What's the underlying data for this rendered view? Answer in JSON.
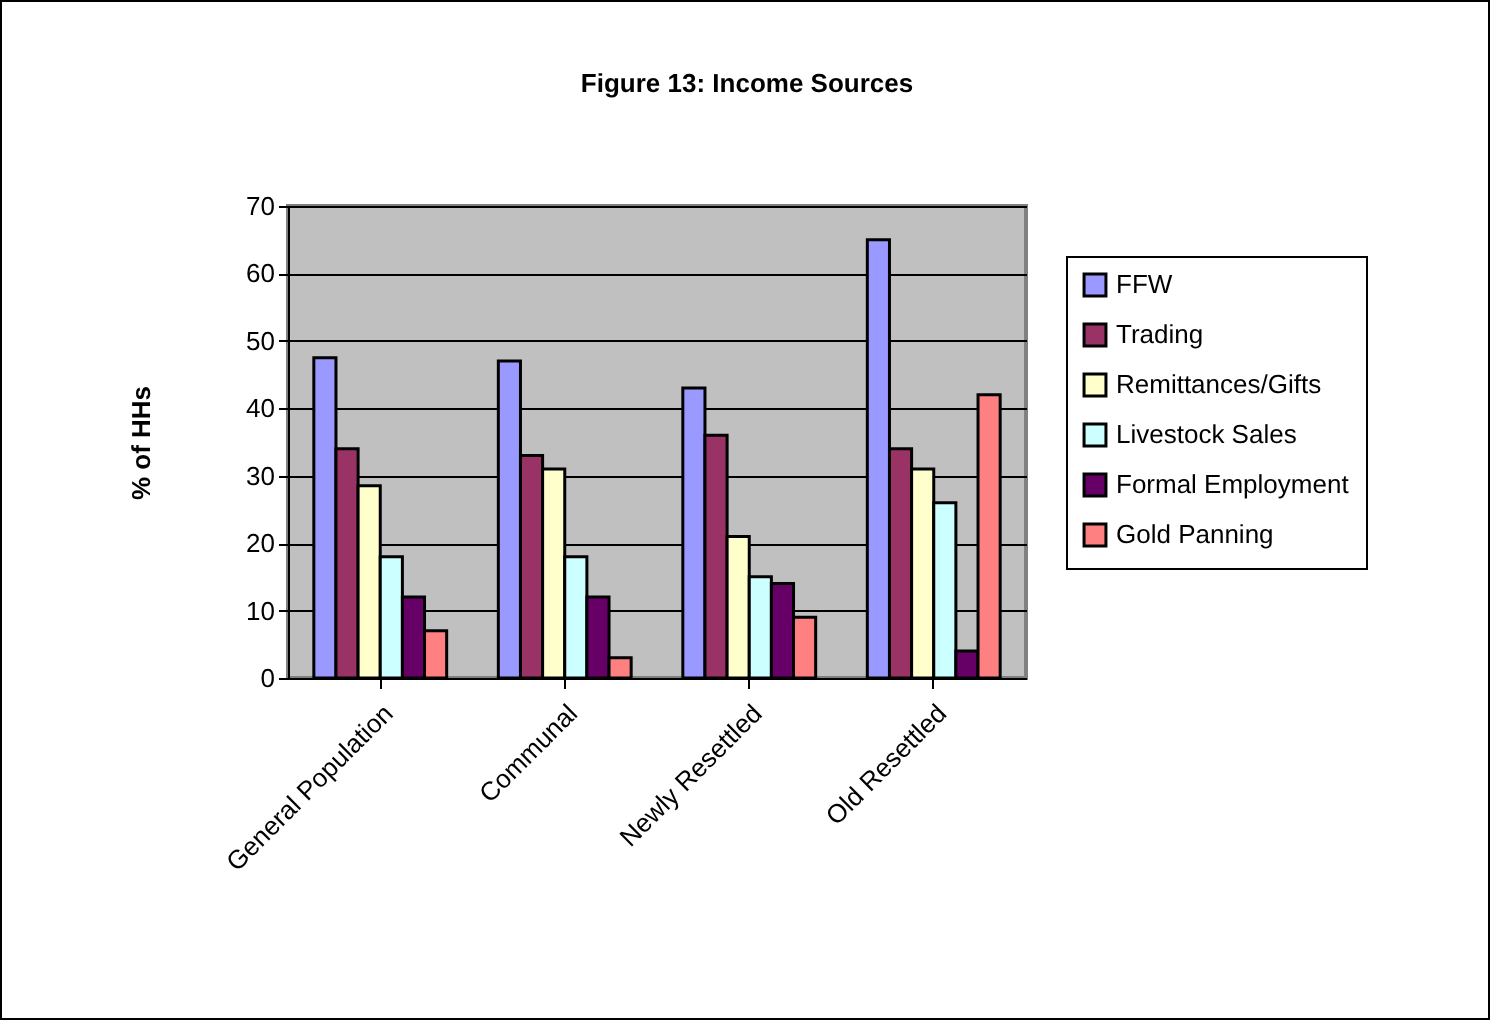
{
  "chart_data": {
    "type": "bar",
    "title": "Figure 13:  Income Sources",
    "ylabel": "% of HHs",
    "categories": [
      "General Population",
      "Communal",
      "Newly Resettled",
      "Old Resettled"
    ],
    "series": [
      {
        "name": "FFW",
        "color": "#9999ff",
        "values": [
          47.5,
          47,
          43,
          65
        ]
      },
      {
        "name": "Trading",
        "color": "#993366",
        "values": [
          34,
          33,
          36,
          34
        ]
      },
      {
        "name": "Remittances/Gifts",
        "color": "#ffffcc",
        "values": [
          28.5,
          31,
          21,
          31
        ]
      },
      {
        "name": "Livestock Sales",
        "color": "#ccffff",
        "values": [
          18,
          18,
          15,
          26
        ]
      },
      {
        "name": "Formal Employment",
        "color": "#660066",
        "values": [
          12,
          12,
          14,
          4
        ]
      },
      {
        "name": "Gold Panning",
        "color": "#ff8080",
        "values": [
          7,
          3,
          9,
          42
        ]
      }
    ],
    "ylim": [
      0,
      70
    ],
    "yticks": [
      0,
      10,
      20,
      30,
      40,
      50,
      60,
      70
    ],
    "grid": "y",
    "legend": "right"
  }
}
